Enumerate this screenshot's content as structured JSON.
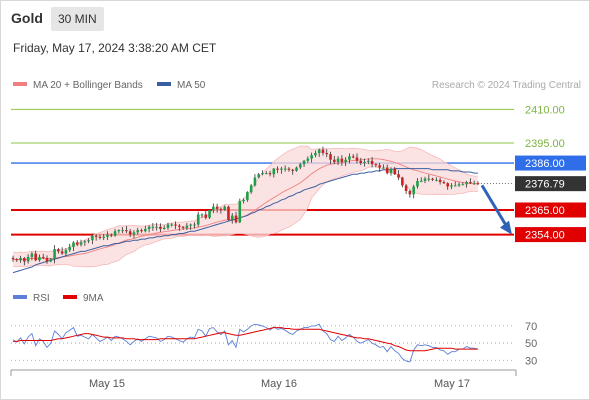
{
  "header": {
    "instrument": "Gold",
    "timeframe": "30 MIN"
  },
  "datetime": "Friday, May 17, 2024 3:38:20 AM CET",
  "legend": {
    "bollinger_label": "MA 20 + Bollinger Bands",
    "bollinger_color": "#f08080",
    "ma50_label": "MA 50",
    "ma50_color": "#3a5fa0"
  },
  "credit": "Research © 2024 Trading Central",
  "rsi_legend": {
    "rsi_label": "RSI",
    "rsi_color": "#5b7fd6",
    "ma_label": "9MA",
    "ma_color": "#e00000"
  },
  "chart_data": [
    {
      "type": "candlestick",
      "ylim": [
        2331,
        2416
      ],
      "last_price": {
        "value": 2376.79,
        "label": "2376.79"
      },
      "levels": [
        {
          "value": 2410.0,
          "label": "2410.00",
          "kind": "target",
          "color": "#8ec63f"
        },
        {
          "value": 2395.0,
          "label": "2395.00",
          "kind": "target",
          "color": "#8ec63f"
        },
        {
          "value": 2386.0,
          "label": "2386.00",
          "kind": "pivot",
          "color": "#2f6ee8"
        },
        {
          "value": 2365.0,
          "label": "2365.00",
          "kind": "support",
          "color": "#e00000"
        },
        {
          "value": 2354.0,
          "label": "2354.00",
          "kind": "support",
          "color": "#e00000"
        }
      ],
      "x_ticks": [
        "May 15",
        "May 16",
        "May 17"
      ],
      "forecast_arrow": {
        "from": 2376.0,
        "to": 2354.0,
        "direction": "down",
        "color": "#2e63b8"
      },
      "series": [
        {
          "name": "Gold",
          "type": "candlestick",
          "close": [
            2343.0,
            2342.5,
            2343.5,
            2342.0,
            2344.0,
            2345.5,
            2342.5,
            2344.0,
            2343.5,
            2342.0,
            2343.0,
            2347.5,
            2346.5,
            2345.5,
            2347.0,
            2348.5,
            2350.5,
            2349.5,
            2350.5,
            2351.0,
            2351.5,
            2353.5,
            2353.0,
            2352.5,
            2353.0,
            2354.0,
            2353.5,
            2355.5,
            2356.0,
            2356.0,
            2355.5,
            2354.0,
            2355.0,
            2356.0,
            2355.5,
            2356.5,
            2357.5,
            2357.5,
            2357.5,
            2356.5,
            2357.0,
            2358.5,
            2358.5,
            2358.0,
            2357.5,
            2357.0,
            2358.0,
            2358.5,
            2358.5,
            2363.0,
            2363.0,
            2361.5,
            2365.0,
            2366.5,
            2365.5,
            2365.0,
            2366.5,
            2360.5,
            2362.5,
            2359.5,
            2369.0,
            2369.5,
            2373.0,
            2376.0,
            2379.5,
            2381.0,
            2381.5,
            2381.5,
            2381.0,
            2383.5,
            2383.0,
            2383.5,
            2383.5,
            2383.0,
            2382.5,
            2384.0,
            2385.5,
            2387.0,
            2388.0,
            2389.5,
            2390.5,
            2392.0,
            2390.5,
            2390.0,
            2387.5,
            2386.5,
            2388.0,
            2386.5,
            2387.5,
            2389.0,
            2388.5,
            2387.0,
            2386.0,
            2386.5,
            2387.0,
            2385.5,
            2385.0,
            2384.0,
            2384.0,
            2381.5,
            2383.5,
            2381.0,
            2379.5,
            2376.0,
            2373.5,
            2372.0,
            2375.5,
            2378.0,
            2378.0,
            2379.0,
            2379.0,
            2378.5,
            2378.5,
            2377.5,
            2377.0,
            2375.5,
            2376.0,
            2376.0,
            2376.5,
            2376.5,
            2377.5,
            2377.0,
            2377.0,
            2376.8
          ],
          "ma50": [
            2337.0,
            2337.5,
            2338.0,
            2338.5,
            2339.0,
            2339.5,
            2340.5,
            2341.0,
            2341.5,
            2342.0,
            2342.5,
            2343.0,
            2343.5,
            2344.0,
            2344.5,
            2345.0,
            2345.5,
            2346.0,
            2346.5,
            2346.5,
            2347.0,
            2347.5,
            2348.0,
            2348.5,
            2349.0,
            2349.0,
            2349.5,
            2350.0,
            2350.0,
            2350.5,
            2351.0,
            2351.0,
            2351.5,
            2351.5,
            2352.0,
            2352.0,
            2352.5,
            2352.5,
            2353.0,
            2353.0,
            2353.5,
            2353.5,
            2354.0,
            2354.0,
            2354.5,
            2354.5,
            2355.0,
            2355.5,
            2355.5,
            2356.0,
            2356.5,
            2357.0,
            2357.5,
            2358.0,
            2358.5,
            2359.0,
            2359.5,
            2360.0,
            2360.5,
            2361.0,
            2361.5,
            2362.0,
            2362.5,
            2363.5,
            2364.0,
            2365.0,
            2365.5,
            2366.5,
            2367.0,
            2368.0,
            2368.5,
            2369.5,
            2370.0,
            2371.0,
            2371.5,
            2372.5,
            2373.0,
            2374.0,
            2374.5,
            2375.0,
            2375.5,
            2376.5,
            2377.0,
            2377.5,
            2378.0,
            2378.5,
            2379.0,
            2379.5,
            2380.0,
            2380.5,
            2381.0,
            2381.0,
            2381.5,
            2381.5,
            2382.0,
            2382.0,
            2382.5,
            2382.5,
            2383.0,
            2383.0,
            2383.0,
            2383.5,
            2383.5,
            2383.5,
            2383.5,
            2383.5,
            2383.5,
            2383.5,
            2383.5,
            2383.5,
            2383.5,
            2383.0,
            2383.0,
            2383.0,
            2383.0,
            2383.0,
            2382.5,
            2382.5,
            2382.5,
            2382.0,
            2382.0,
            2382.0,
            2381.5,
            2381.5
          ]
        }
      ]
    },
    {
      "type": "line",
      "ylim": [
        21,
        85
      ],
      "yticks": [
        30,
        50,
        70
      ],
      "dotted_levels": [
        30,
        50,
        70
      ],
      "series": [
        {
          "name": "RSI",
          "values": [
            54,
            51,
            56,
            49,
            57,
            61,
            47,
            55,
            52,
            45,
            50,
            64,
            60,
            55,
            62,
            65,
            68,
            58,
            59,
            57,
            55,
            60,
            56,
            52,
            54,
            57,
            53,
            58,
            57,
            55,
            52,
            48,
            52,
            55,
            52,
            55,
            58,
            57,
            56,
            52,
            54,
            58,
            57,
            55,
            53,
            51,
            55,
            57,
            56,
            66,
            64,
            58,
            67,
            68,
            63,
            60,
            64,
            48,
            53,
            45,
            66,
            63,
            66,
            70,
            72,
            71,
            70,
            68,
            65,
            69,
            66,
            67,
            65,
            62,
            60,
            64,
            66,
            68,
            68,
            70,
            70,
            72,
            64,
            61,
            54,
            52,
            58,
            53,
            56,
            60,
            57,
            52,
            50,
            52,
            54,
            50,
            48,
            45,
            46,
            40,
            46,
            41,
            38,
            32,
            29,
            28,
            42,
            48,
            47,
            48,
            47,
            45,
            45,
            42,
            41,
            37,
            40,
            40,
            43,
            43,
            46,
            44,
            44,
            43
          ]
        },
        {
          "name": "9MA",
          "values": [
            52,
            52,
            53,
            53,
            53,
            53,
            53,
            53,
            53,
            53,
            53,
            54,
            55,
            55,
            56,
            57,
            58,
            59,
            60,
            61,
            61,
            60,
            59,
            58,
            57,
            57,
            56,
            56,
            56,
            56,
            55,
            55,
            55,
            54,
            54,
            54,
            54,
            54,
            54,
            55,
            55,
            55,
            55,
            55,
            55,
            55,
            55,
            55,
            55,
            56,
            57,
            58,
            59,
            60,
            61,
            62,
            62,
            61,
            60,
            59,
            59,
            60,
            61,
            62,
            63,
            64,
            65,
            66,
            67,
            68,
            68,
            68,
            67,
            67,
            66,
            66,
            66,
            66,
            66,
            66,
            66,
            66,
            65,
            64,
            63,
            62,
            61,
            60,
            59,
            58,
            57,
            56,
            56,
            55,
            55,
            54,
            53,
            52,
            51,
            50,
            49,
            47,
            46,
            44,
            42,
            41,
            41,
            41,
            41,
            41,
            42,
            43,
            44,
            44,
            44,
            44,
            44,
            43,
            43,
            43,
            43,
            43,
            43,
            43
          ]
        }
      ]
    }
  ]
}
